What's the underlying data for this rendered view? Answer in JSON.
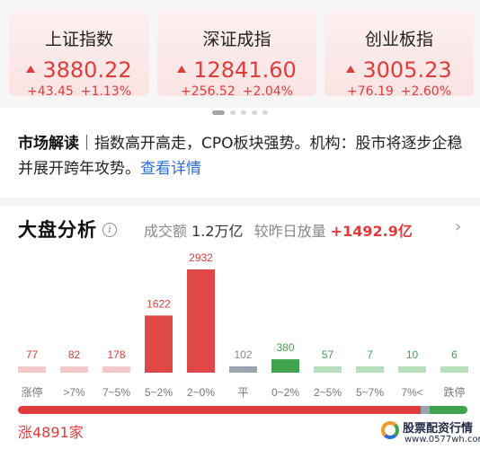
{
  "indices": [
    {
      "name": "上证指数",
      "price": "3880.22",
      "change": "+43.45",
      "pct": "+1.13%"
    },
    {
      "name": "深证成指",
      "price": "12841.60",
      "change": "+256.52",
      "pct": "+2.04%"
    },
    {
      "name": "创业板指",
      "price": "3005.23",
      "change": "+76.19",
      "pct": "+2.60%"
    }
  ],
  "carousel": {
    "pages": 5,
    "active": 0
  },
  "reading": {
    "title": "市场解读",
    "separator": "｜",
    "text": "指数高开高走，CPO板块强势。机构：股市将逐步企稳并展开跨年攻势。",
    "link": "查看详情"
  },
  "analysis": {
    "title": "大盘分析",
    "turnover_label": "成交额",
    "turnover_value": "1.2万亿",
    "compare_label": "较昨日放量",
    "compare_value": "+1492.9亿",
    "chevron": "›"
  },
  "chart_data": {
    "type": "bar",
    "categories": [
      "涨停",
      ">7%",
      "7~5%",
      "5~2%",
      "2~0%",
      "平",
      "0~2%",
      "2~5%",
      "5~7%",
      "7%<",
      "跌停"
    ],
    "values": [
      77,
      82,
      178,
      1622,
      2932,
      102,
      380,
      57,
      7,
      10,
      6
    ],
    "group": [
      "up",
      "up",
      "up",
      "up",
      "up",
      "flat",
      "down",
      "down",
      "down",
      "down",
      "down"
    ],
    "ylim": [
      0,
      2932
    ],
    "grid": false,
    "colors": {
      "up_strong": "#e04848",
      "up_light": "#f3c9c9",
      "up_label": "#e03c3c",
      "flat": "#9aa3b0",
      "flat_label": "#888888",
      "down_strong": "#3fa34d",
      "down_light": "#b7dfbc",
      "down_label": "#3fa34d"
    }
  },
  "breadth": {
    "up_label": "涨4891家",
    "up": 4891,
    "flat": 102,
    "down": 460
  },
  "watermark": {
    "name": "股票配资行情",
    "url": "www.0577wh.com"
  }
}
